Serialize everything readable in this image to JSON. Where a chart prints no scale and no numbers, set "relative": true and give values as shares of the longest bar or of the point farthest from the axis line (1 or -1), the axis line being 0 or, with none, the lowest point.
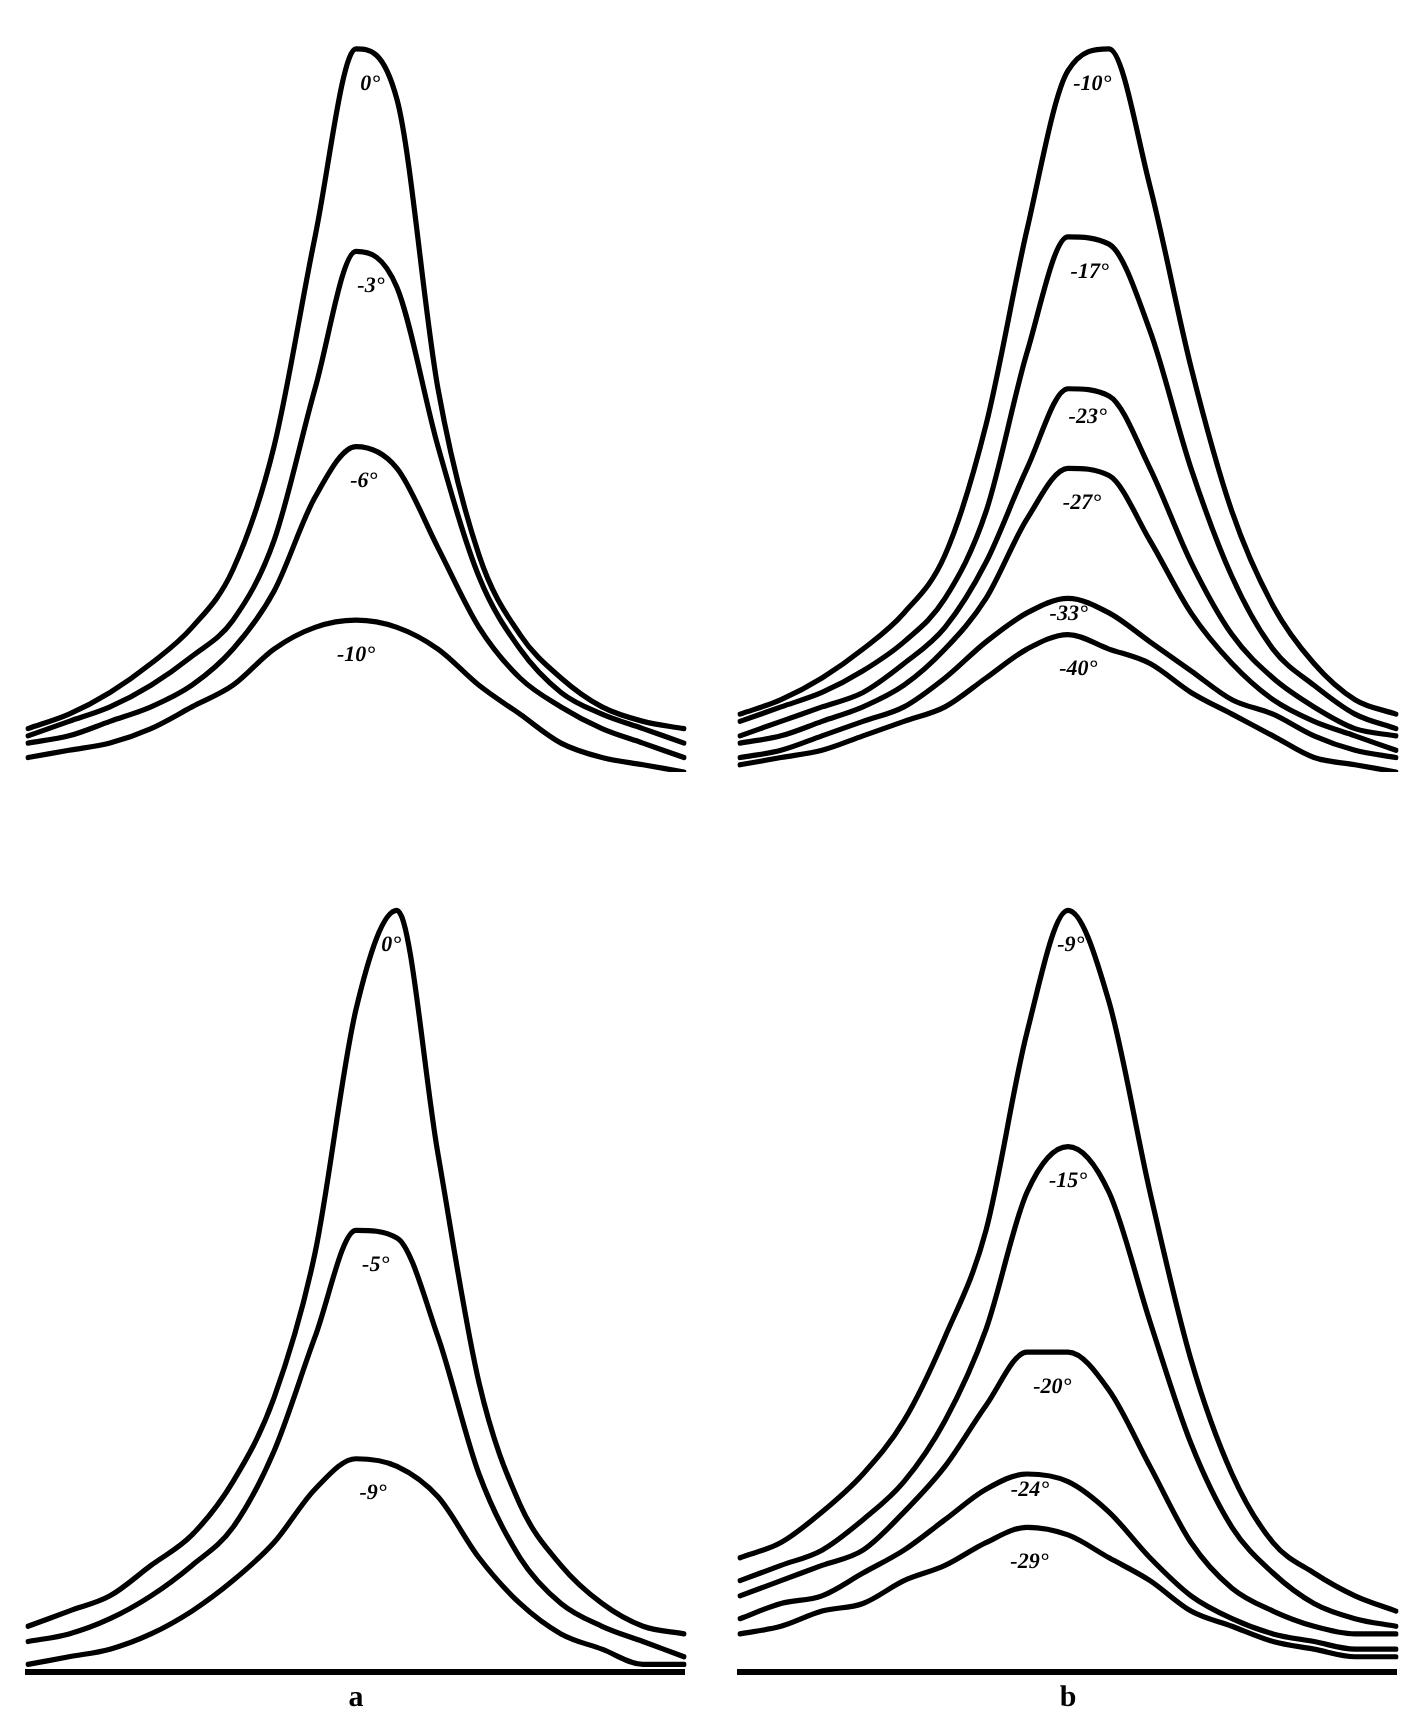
{
  "chart_data": [
    {
      "type": "line",
      "relative": true,
      "legend": false,
      "tick_labels": false,
      "grid": false,
      "marker": "none",
      "categories": [
        null,
        null,
        null,
        null,
        null,
        null,
        null,
        null,
        null,
        null,
        null,
        null,
        null,
        null,
        null,
        null,
        null
      ],
      "series": [
        {
          "name": "0°",
          "color": "#000000",
          "values": [
            0.06,
            0.08,
            0.11,
            0.15,
            0.2,
            0.28,
            0.45,
            0.74,
            1.0,
            0.93,
            0.53,
            0.3,
            0.19,
            0.13,
            0.09,
            0.07,
            0.06
          ]
        },
        {
          "name": "-3°",
          "color": "#000000",
          "values": [
            0.05,
            0.07,
            0.09,
            0.12,
            0.16,
            0.21,
            0.32,
            0.53,
            0.72,
            0.67,
            0.45,
            0.27,
            0.17,
            0.11,
            0.08,
            0.06,
            0.04
          ]
        },
        {
          "name": "-6°",
          "color": "#000000",
          "values": [
            0.04,
            0.05,
            0.07,
            0.09,
            0.12,
            0.17,
            0.25,
            0.38,
            0.45,
            0.42,
            0.31,
            0.2,
            0.13,
            0.09,
            0.06,
            0.04,
            0.02
          ]
        },
        {
          "name": "-10°",
          "color": "#000000",
          "values": [
            0.02,
            0.03,
            0.04,
            0.06,
            0.09,
            0.12,
            0.17,
            0.2,
            0.21,
            0.2,
            0.17,
            0.12,
            0.08,
            0.04,
            0.02,
            0.01,
            0
          ]
        }
      ]
    },
    {
      "type": "line",
      "relative": true,
      "legend": false,
      "tick_labels": false,
      "grid": false,
      "marker": "none",
      "categories": [
        null,
        null,
        null,
        null,
        null,
        null,
        null,
        null,
        null,
        null,
        null,
        null,
        null,
        null,
        null,
        null,
        null
      ],
      "series": [
        {
          "name": "-10°",
          "color": "#000000",
          "values": [
            0.08,
            0.1,
            0.13,
            0.17,
            0.22,
            0.3,
            0.48,
            0.75,
            0.97,
            1.0,
            0.81,
            0.56,
            0.36,
            0.23,
            0.15,
            0.1,
            0.08
          ]
        },
        {
          "name": "-17°",
          "color": "#000000",
          "values": [
            0.07,
            0.09,
            0.11,
            0.14,
            0.18,
            0.24,
            0.36,
            0.58,
            0.74,
            0.73,
            0.61,
            0.42,
            0.27,
            0.17,
            0.12,
            0.08,
            0.06
          ]
        },
        {
          "name": "-23°",
          "color": "#000000",
          "values": [
            0.05,
            0.07,
            0.09,
            0.11,
            0.15,
            0.2,
            0.29,
            0.42,
            0.53,
            0.52,
            0.42,
            0.29,
            0.19,
            0.13,
            0.09,
            0.06,
            0.05
          ]
        },
        {
          "name": "-27°",
          "color": "#000000",
          "values": [
            0.04,
            0.05,
            0.07,
            0.09,
            0.12,
            0.17,
            0.24,
            0.35,
            0.42,
            0.41,
            0.32,
            0.22,
            0.15,
            0.1,
            0.07,
            0.05,
            0.03
          ]
        },
        {
          "name": "-33°",
          "color": "#000000",
          "values": [
            0.02,
            0.03,
            0.05,
            0.07,
            0.09,
            0.13,
            0.18,
            0.22,
            0.24,
            0.22,
            0.18,
            0.14,
            0.1,
            0.08,
            0.05,
            0.03,
            0.02
          ]
        },
        {
          "name": "-40°",
          "color": "#000000",
          "values": [
            0.01,
            0.02,
            0.03,
            0.05,
            0.07,
            0.09,
            0.13,
            0.17,
            0.19,
            0.17,
            0.15,
            0.11,
            0.08,
            0.05,
            0.02,
            0.01,
            0
          ]
        }
      ]
    },
    {
      "type": "line",
      "relative": true,
      "legend": false,
      "tick_labels": false,
      "grid": false,
      "marker": "none",
      "xlabel": "a",
      "categories": [
        null,
        null,
        null,
        null,
        null,
        null,
        null,
        null,
        null,
        null,
        null,
        null,
        null,
        null,
        null,
        null,
        null
      ],
      "series": [
        {
          "name": "0°",
          "color": "#000000",
          "values": [
            0.06,
            0.08,
            0.1,
            0.14,
            0.18,
            0.25,
            0.36,
            0.55,
            0.87,
            1.0,
            0.68,
            0.38,
            0.22,
            0.14,
            0.09,
            0.06,
            0.05
          ]
        },
        {
          "name": "-5°",
          "color": "#000000",
          "values": [
            0.04,
            0.05,
            0.07,
            0.1,
            0.14,
            0.19,
            0.29,
            0.44,
            0.58,
            0.57,
            0.44,
            0.26,
            0.15,
            0.09,
            0.06,
            0.04,
            0.02
          ]
        },
        {
          "name": "-9°",
          "color": "#000000",
          "values": [
            0.01,
            0.02,
            0.03,
            0.05,
            0.08,
            0.12,
            0.17,
            0.24,
            0.28,
            0.27,
            0.23,
            0.15,
            0.09,
            0.05,
            0.03,
            0.01,
            0.01
          ]
        }
      ]
    },
    {
      "type": "line",
      "relative": true,
      "legend": false,
      "tick_labels": false,
      "grid": false,
      "marker": "none",
      "xlabel": "b",
      "categories": [
        null,
        null,
        null,
        null,
        null,
        null,
        null,
        null,
        null,
        null,
        null,
        null,
        null,
        null,
        null,
        null,
        null
      ],
      "series": [
        {
          "name": "-9°",
          "color": "#000000",
          "values": [
            0.15,
            0.17,
            0.21,
            0.26,
            0.33,
            0.44,
            0.58,
            0.84,
            1.0,
            0.88,
            0.63,
            0.41,
            0.26,
            0.17,
            0.13,
            0.1,
            0.08
          ]
        },
        {
          "name": "-15°",
          "color": "#000000",
          "values": [
            0.12,
            0.14,
            0.16,
            0.2,
            0.25,
            0.33,
            0.45,
            0.63,
            0.69,
            0.63,
            0.46,
            0.3,
            0.19,
            0.13,
            0.09,
            0.07,
            0.06
          ]
        },
        {
          "name": "-20°",
          "color": "#000000",
          "values": [
            0.1,
            0.12,
            0.14,
            0.16,
            0.21,
            0.27,
            0.35,
            0.42,
            0.42,
            0.37,
            0.27,
            0.17,
            0.11,
            0.08,
            0.06,
            0.05,
            0.05
          ]
        },
        {
          "name": "-24°",
          "color": "#000000",
          "values": [
            0.07,
            0.09,
            0.1,
            0.13,
            0.16,
            0.2,
            0.24,
            0.26,
            0.25,
            0.21,
            0.15,
            0.1,
            0.07,
            0.05,
            0.04,
            0.03,
            0.03
          ]
        },
        {
          "name": "-29°",
          "color": "#000000",
          "values": [
            0.05,
            0.06,
            0.08,
            0.09,
            0.12,
            0.14,
            0.17,
            0.19,
            0.18,
            0.15,
            0.12,
            0.08,
            0.06,
            0.04,
            0.03,
            0.02,
            0.02
          ]
        }
      ]
    }
  ]
}
